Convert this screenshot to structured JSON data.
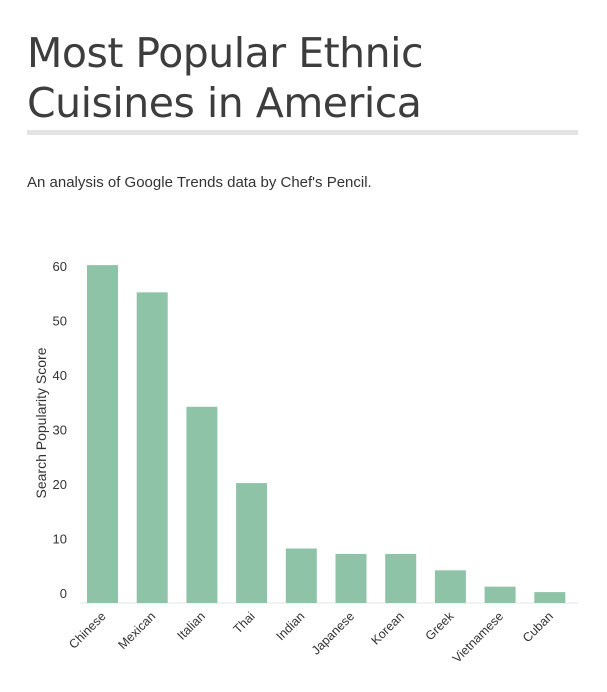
{
  "header": {
    "title_line1": "Most Popular Ethnic",
    "title_line2": "Cuisines in America",
    "subtitle": "An analysis of Google Trends data by Chef's Pencil."
  },
  "colors": {
    "bar": "#8fc3a8",
    "title": "#3d3d3d",
    "rule": "#e3e3e3",
    "axis_text": "#333333"
  },
  "chart_data": {
    "type": "bar",
    "title": "",
    "xlabel": "",
    "ylabel": "Search Popularity Score",
    "categories": [
      "Chinese",
      "Mexican",
      "Italian",
      "Thai",
      "Indian",
      "Japanese",
      "Korean",
      "Greek",
      "Vietnamese",
      "Cuban"
    ],
    "values": [
      62,
      57,
      36,
      22,
      10,
      9,
      9,
      6,
      3,
      2
    ],
    "ylim": [
      0,
      65
    ],
    "yticks": [
      0,
      10,
      20,
      30,
      40,
      50,
      60
    ],
    "grid": false,
    "legend": "none"
  }
}
